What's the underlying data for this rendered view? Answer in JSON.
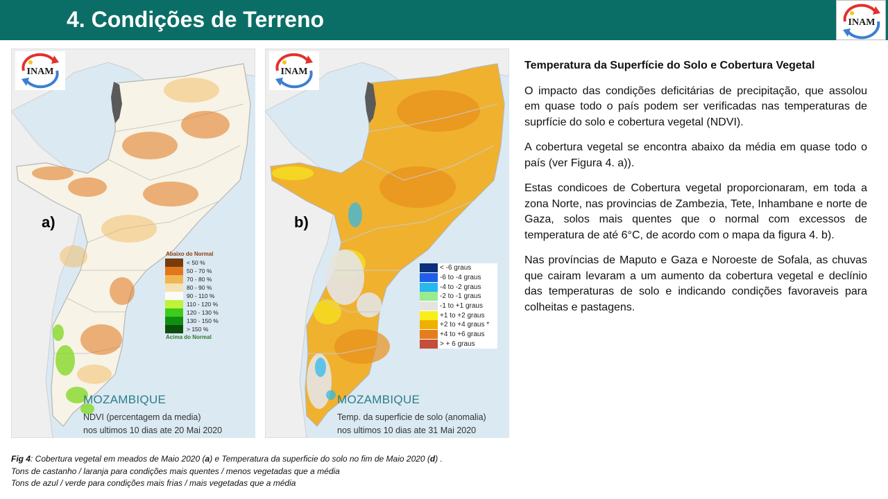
{
  "header": {
    "title": "4. Condições de Terreno",
    "logo_text": "INAM"
  },
  "map_a": {
    "logo_text": "INAM",
    "panel_letter": "a)",
    "country": "MOZAMBIQUE",
    "subtitle_1": "NDVI (percentagem da media)",
    "subtitle_2": "nos ultimos 10 dias ate 20 Mai 2020",
    "legend_header": "Abaixo do Normal",
    "legend_footer": "Acima do Normal",
    "legend": [
      {
        "label": "< 50 %",
        "color": "#7a3a0c"
      },
      {
        "label": "50 - 70 %",
        "color": "#e0771b"
      },
      {
        "label": "70 - 80 %",
        "color": "#f2b553"
      },
      {
        "label": "80 - 90 %",
        "color": "#f4e2b0"
      },
      {
        "label": "90 - 110 %",
        "color": "#fbfbf5"
      },
      {
        "label": "110 - 120 %",
        "color": "#bff23a"
      },
      {
        "label": "120 - 130 %",
        "color": "#3fcb1c"
      },
      {
        "label": "130 - 150 %",
        "color": "#0e9112"
      },
      {
        "label": "> 150 %",
        "color": "#0b4f0b"
      }
    ]
  },
  "map_b": {
    "logo_text": "INAM",
    "panel_letter": "b)",
    "country": "MOZAMBIQUE",
    "subtitle_1": "Temp. da superficie de solo (anomalia)",
    "subtitle_2": "nos ultimos 10 dias ate 31 Mai 2020",
    "legend": [
      {
        "label": "< -6 graus",
        "color": "#0b2f7a"
      },
      {
        "label": "-6 to -4 graus",
        "color": "#1f5ee6"
      },
      {
        "label": "-4 to -2 graus",
        "color": "#27b8f0"
      },
      {
        "label": "-2 to -1 graus",
        "color": "#98ec8c"
      },
      {
        "label": "-1 to +1 graus",
        "color": "#e4e4e4"
      },
      {
        "label": "+1 to +2 graus",
        "color": "#f8ee1a"
      },
      {
        "label": "+2 to +4 graus *",
        "color": "#f0b000"
      },
      {
        "label": "+4 to +6 graus",
        "color": "#e57d1c"
      },
      {
        "label": "> + 6 graus",
        "color": "#c44e3a"
      }
    ]
  },
  "text_panel": {
    "heading": "Temperatura da Superfície  do Solo e Cobertura  Vegetal",
    "paragraphs": [
      "O impacto das condições deficitárias de precipitação, que assolou em quase todo o país podem ser verificadas nas temperaturas de suprfície do solo e cobertura vegetal (NDVI).",
      "A cobertura vegetal se encontra abaixo da média em quase todo o país (ver Figura 4. a)).",
      "Estas condicoes de Cobertura vegetal proporcionaram, em toda a zona Norte, nas provincias de Zambezia, Tete, Inhambane e norte de Gaza, solos mais quentes que o normal com excessos de temperatura de até 6°C, de acordo com o mapa da figura 4. b).",
      "Nas províncias de Maputo e Gaza e Noroeste de Sofala, as chuvas que cairam levaram a um aumento da cobertura vegetal e declínio das temperaturas de solo e indicando condições favoraveis para colheitas e pastagens."
    ]
  },
  "caption": {
    "fig_label": "Fig 4",
    "line1_part1": ": Cobertura vegetal em meados de Maio 2020 (",
    "line1_a": "a",
    "line1_part2": ") e Temperatura da superficie do solo no fim de Maio 2020 (",
    "line1_d": "d",
    "line1_part3": ") .",
    "line2": "Tons de castanho / laranja para  condições mais quentes / menos vegetadas que a média",
    "line3": "Tons de azul  / verde para condições mais frias / mais vegetadas que a média"
  },
  "colors": {
    "header_bg": "#0a6e66",
    "sea": "#dbe9f2",
    "land_outside": "#eeeeee",
    "mozambique_a": "#f7f3e6",
    "mozambique_b": "#f0b12e",
    "lake": "#5a5a5a",
    "logo_red": "#e2312c",
    "logo_blue": "#3b7fd1"
  }
}
